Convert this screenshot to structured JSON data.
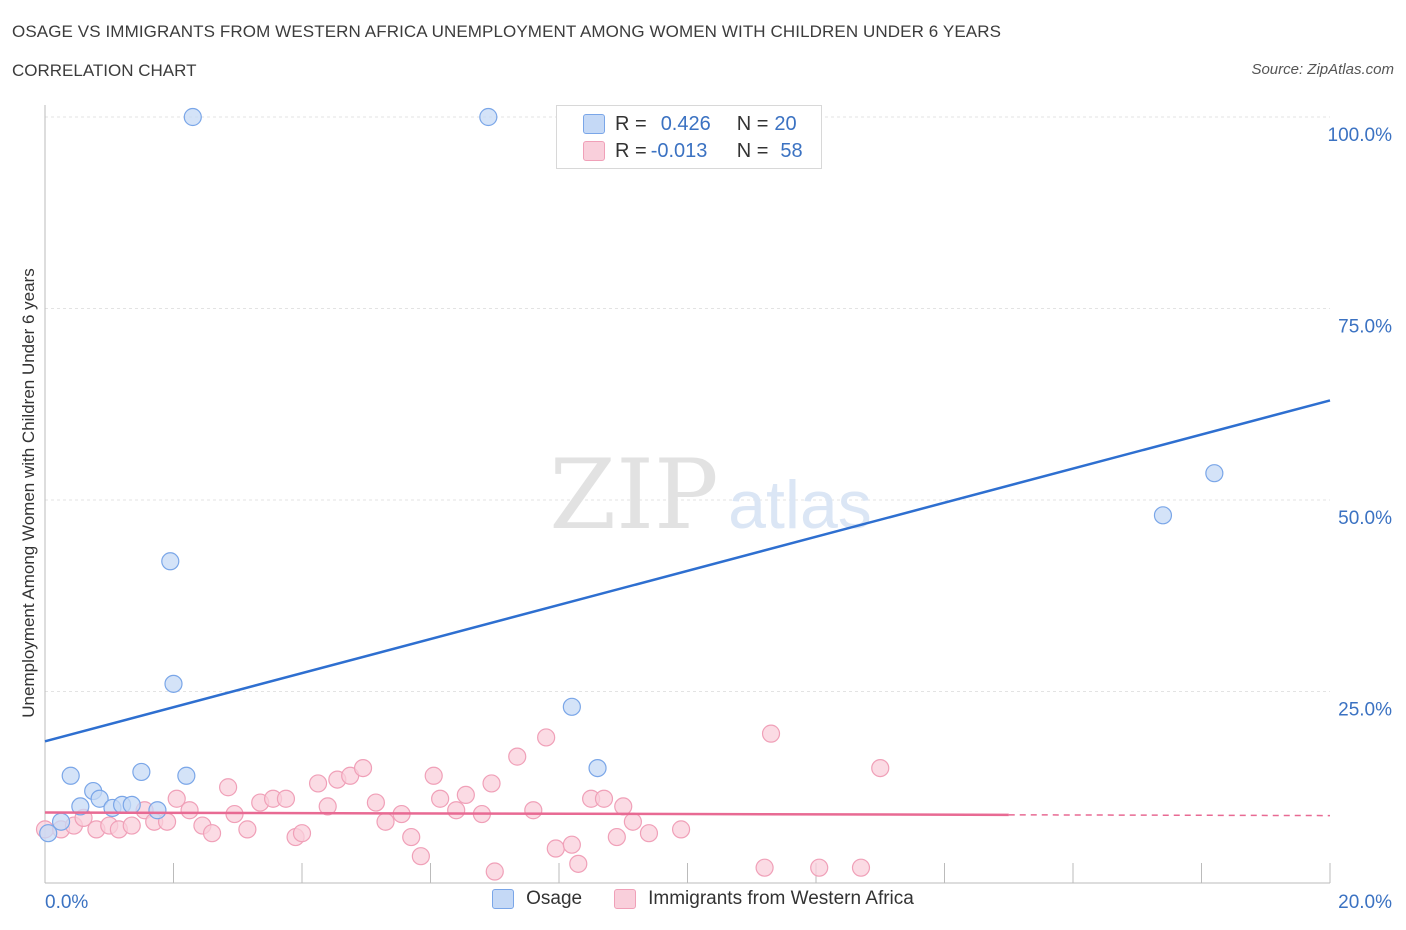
{
  "header": {
    "title": "OSAGE VS IMMIGRANTS FROM WESTERN AFRICA UNEMPLOYMENT AMONG WOMEN WITH CHILDREN UNDER 6 YEARS",
    "subtitle": "CORRELATION CHART",
    "source": "Source: ZipAtlas.com"
  },
  "watermark": {
    "zip": "ZIP",
    "atlas": "atlas"
  },
  "legend": {
    "rows": [
      {
        "r_label": "R =",
        "r_value": "0.426",
        "n_label": "N =",
        "n_value": "20"
      },
      {
        "r_label": "R =",
        "r_value": "-0.013",
        "n_label": "N =",
        "n_value": "58"
      }
    ]
  },
  "chart_data": {
    "type": "scatter",
    "ylabel": "Unemployment Among Women with Children Under 6 years",
    "xlim": [
      0,
      20
    ],
    "ylim": [
      0,
      100
    ],
    "x_tick_labels": [
      "0.0%",
      "20.0%"
    ],
    "y_tick_labels": [
      "25.0%",
      "50.0%",
      "75.0%",
      "100.0%"
    ],
    "y_ticks": [
      25,
      50,
      75,
      100
    ],
    "series": [
      {
        "name": "Osage",
        "color": "#7aa6e8",
        "fill": "#c5d9f6",
        "line_color": "#2e6fd0",
        "points": [
          [
            0.05,
            6.5
          ],
          [
            0.25,
            8.0
          ],
          [
            0.4,
            14.0
          ],
          [
            0.55,
            10.0
          ],
          [
            0.75,
            12.0
          ],
          [
            0.85,
            11.0
          ],
          [
            1.05,
            9.8
          ],
          [
            1.2,
            10.2
          ],
          [
            1.35,
            10.2
          ],
          [
            1.5,
            14.5
          ],
          [
            1.75,
            9.5
          ],
          [
            1.95,
            42.0
          ],
          [
            2.0,
            26.0
          ],
          [
            2.2,
            14.0
          ],
          [
            2.3,
            100.0
          ],
          [
            6.9,
            100.0
          ],
          [
            8.2,
            23.0
          ],
          [
            8.6,
            15.0
          ],
          [
            17.4,
            48.0
          ],
          [
            18.2,
            53.5
          ]
        ],
        "trend": {
          "x0": 0,
          "y0": 18.5,
          "x1": 20,
          "y1": 63.0,
          "dashed_from": null
        }
      },
      {
        "name": "Immigrants from Western Africa",
        "color": "#f0a0b8",
        "fill": "#f9cfdb",
        "line_color": "#e86a93",
        "points": [
          [
            0.0,
            7.0
          ],
          [
            0.25,
            7.0
          ],
          [
            0.45,
            7.5
          ],
          [
            0.6,
            8.5
          ],
          [
            0.8,
            7.0
          ],
          [
            1.0,
            7.5
          ],
          [
            1.15,
            7.0
          ],
          [
            1.35,
            7.5
          ],
          [
            1.55,
            9.5
          ],
          [
            1.7,
            8.0
          ],
          [
            1.9,
            8.0
          ],
          [
            2.05,
            11.0
          ],
          [
            2.25,
            9.5
          ],
          [
            2.45,
            7.5
          ],
          [
            2.6,
            6.5
          ],
          [
            2.85,
            12.5
          ],
          [
            2.95,
            9.0
          ],
          [
            3.15,
            7.0
          ],
          [
            3.35,
            10.5
          ],
          [
            3.55,
            11.0
          ],
          [
            3.75,
            11.0
          ],
          [
            3.9,
            6.0
          ],
          [
            4.0,
            6.5
          ],
          [
            4.25,
            13.0
          ],
          [
            4.4,
            10.0
          ],
          [
            4.55,
            13.5
          ],
          [
            4.75,
            14.0
          ],
          [
            4.95,
            15.0
          ],
          [
            5.15,
            10.5
          ],
          [
            5.3,
            8.0
          ],
          [
            5.55,
            9.0
          ],
          [
            5.7,
            6.0
          ],
          [
            5.85,
            3.5
          ],
          [
            6.05,
            14.0
          ],
          [
            6.15,
            11.0
          ],
          [
            6.4,
            9.5
          ],
          [
            6.55,
            11.5
          ],
          [
            6.8,
            9.0
          ],
          [
            6.95,
            13.0
          ],
          [
            7.0,
            1.5
          ],
          [
            7.35,
            16.5
          ],
          [
            7.6,
            9.5
          ],
          [
            7.8,
            19.0
          ],
          [
            7.95,
            4.5
          ],
          [
            8.2,
            5.0
          ],
          [
            8.3,
            2.5
          ],
          [
            8.5,
            11.0
          ],
          [
            8.7,
            11.0
          ],
          [
            8.9,
            6.0
          ],
          [
            9.0,
            10.0
          ],
          [
            9.15,
            8.0
          ],
          [
            9.4,
            6.5
          ],
          [
            9.9,
            7.0
          ],
          [
            11.2,
            2.0
          ],
          [
            11.3,
            19.5
          ],
          [
            12.05,
            2.0
          ],
          [
            12.7,
            2.0
          ],
          [
            13.0,
            15.0
          ]
        ],
        "trend": {
          "x0": 0,
          "y0": 9.2,
          "x1": 20,
          "y1": 8.8,
          "dashed_from": 15.0
        }
      }
    ]
  },
  "bottom_legend": {
    "items": [
      {
        "label": "Osage"
      },
      {
        "label": "Immigrants from Western Africa"
      }
    ]
  }
}
